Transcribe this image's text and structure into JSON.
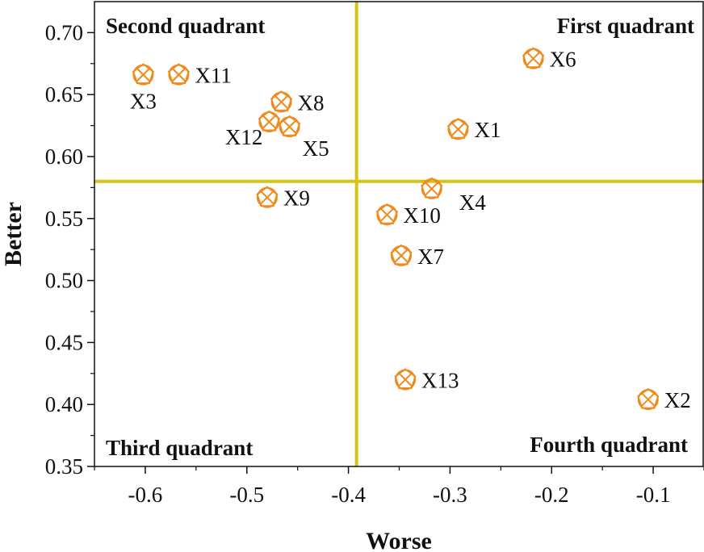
{
  "chart_data": {
    "type": "scatter",
    "xlabel": "Worse",
    "ylabel": "Better",
    "xlim": [
      -0.65,
      -0.05
    ],
    "ylim": [
      0.35,
      0.725
    ],
    "x_ticks": [
      -0.6,
      -0.5,
      -0.4,
      -0.3,
      -0.2,
      -0.1
    ],
    "x_tick_labels": [
      "-0.6",
      "-0.5",
      "-0.4",
      "-0.3",
      "-0.2",
      "-0.1"
    ],
    "y_ticks": [
      0.35,
      0.4,
      0.45,
      0.5,
      0.55,
      0.6,
      0.65,
      0.7
    ],
    "y_tick_labels": [
      "0.35",
      "0.40",
      "0.45",
      "0.50",
      "0.55",
      "0.60",
      "0.65",
      "0.70"
    ],
    "grid": false,
    "divider_lines": {
      "x": -0.392,
      "y": 0.58
    },
    "quadrant_labels": {
      "first": "First quadrant",
      "second": "Second quadrant",
      "third": "Third quadrant",
      "fourth": "Fourth quadrant"
    },
    "marker_color": "#F08A1C",
    "divider_color": "#D4C418",
    "points": [
      {
        "label": "X1",
        "x": -0.292,
        "y": 0.622
      },
      {
        "label": "X2",
        "x": -0.105,
        "y": 0.404
      },
      {
        "label": "X3",
        "x": -0.602,
        "y": 0.666
      },
      {
        "label": "X4",
        "x": -0.318,
        "y": 0.574
      },
      {
        "label": "X5",
        "x": -0.458,
        "y": 0.624
      },
      {
        "label": "X6",
        "x": -0.218,
        "y": 0.679
      },
      {
        "label": "X7",
        "x": -0.348,
        "y": 0.52
      },
      {
        "label": "X8",
        "x": -0.466,
        "y": 0.644
      },
      {
        "label": "X9",
        "x": -0.48,
        "y": 0.567
      },
      {
        "label": "X10",
        "x": -0.362,
        "y": 0.553
      },
      {
        "label": "X11",
        "x": -0.567,
        "y": 0.666
      },
      {
        "label": "X12",
        "x": -0.478,
        "y": 0.628
      },
      {
        "label": "X13",
        "x": -0.344,
        "y": 0.42
      }
    ]
  }
}
